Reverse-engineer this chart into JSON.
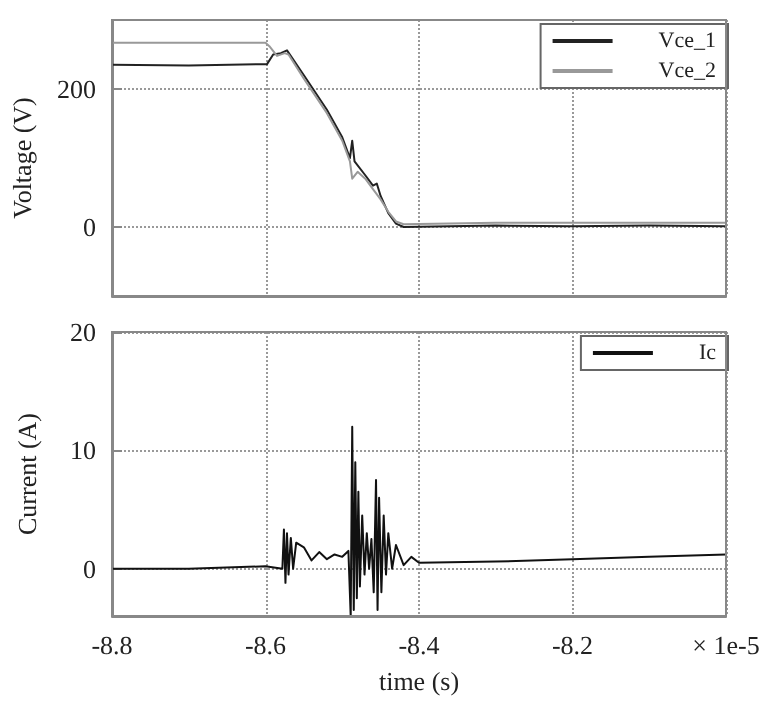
{
  "chart_data": [
    {
      "type": "line",
      "ylabel": "Voltage (V)",
      "xlim": [
        -8.8,
        -8.0
      ],
      "xticks": [
        -8.8,
        -8.6,
        -8.4,
        -8.2,
        -8.0
      ],
      "ylim": [
        -100,
        300
      ],
      "yticks": [
        0,
        200
      ],
      "grid": true,
      "legend": "top right",
      "tick_labels": "y",
      "marker": "none",
      "line_style": "solid",
      "series": [
        {
          "name": "Vce_1",
          "color": "#222222",
          "x": [
            -8.8,
            -8.7,
            -8.61,
            -8.598,
            -8.59,
            -8.58,
            -8.572,
            -8.55,
            -8.52,
            -8.5,
            -8.49,
            -8.487,
            -8.484,
            -8.47,
            -8.46,
            -8.455,
            -8.45,
            -8.44,
            -8.43,
            -8.42,
            -8.3,
            -8.2,
            -8.1,
            -8.0
          ],
          "values": [
            235,
            234,
            236,
            236,
            250,
            252,
            256,
            220,
            170,
            130,
            100,
            125,
            95,
            75,
            60,
            63,
            45,
            20,
            5,
            0,
            2,
            1,
            2,
            1
          ]
        },
        {
          "name": "Vce_2",
          "color": "#999999",
          "x": [
            -8.8,
            -8.7,
            -8.6,
            -8.595,
            -8.585,
            -8.575,
            -8.57,
            -8.55,
            -8.52,
            -8.5,
            -8.49,
            -8.487,
            -8.48,
            -8.47,
            -8.46,
            -8.45,
            -8.44,
            -8.43,
            -8.42,
            -8.3,
            -8.0
          ],
          "values": [
            267,
            267,
            267,
            262,
            248,
            252,
            250,
            215,
            165,
            125,
            95,
            70,
            80,
            70,
            55,
            40,
            22,
            8,
            4,
            6,
            6
          ]
        }
      ]
    },
    {
      "type": "line",
      "xlabel": "time (s)",
      "ylabel": "Current (A)",
      "xlim": [
        -8.8,
        -8.0
      ],
      "xticks": [
        -8.8,
        -8.6,
        -8.4,
        -8.2,
        {
          "value": -8.0,
          "label": "× 1e-5"
        }
      ],
      "ylim": [
        -4,
        20
      ],
      "yticks": [
        0,
        10,
        20
      ],
      "grid": true,
      "legend": "top right",
      "marker": "none",
      "line_style": "solid",
      "series": [
        {
          "name": "Ic",
          "color": "#111111",
          "x": [
            -8.8,
            -8.7,
            -8.6,
            -8.578,
            -8.576,
            -8.574,
            -8.572,
            -8.57,
            -8.567,
            -8.564,
            -8.56,
            -8.55,
            -8.54,
            -8.53,
            -8.52,
            -8.51,
            -8.5,
            -8.492,
            -8.489,
            -8.487,
            -8.485,
            -8.483,
            -8.481,
            -8.479,
            -8.477,
            -8.474,
            -8.471,
            -8.468,
            -8.465,
            -8.462,
            -8.459,
            -8.456,
            -8.454,
            -8.452,
            -8.449,
            -8.446,
            -8.443,
            -8.44,
            -8.435,
            -8.43,
            -8.42,
            -8.41,
            -8.4,
            -8.3,
            -8.2,
            -8.1,
            -8.0
          ],
          "values": [
            0,
            0,
            0.2,
            0,
            3.3,
            -1.2,
            3,
            -0.5,
            2.6,
            0,
            2.2,
            1.8,
            0.7,
            1.4,
            0.8,
            1.2,
            1,
            1.5,
            -4,
            12,
            -3.5,
            9,
            -2.5,
            6.5,
            -1.5,
            4.5,
            -0.5,
            3,
            0,
            2.5,
            -2,
            7.5,
            -3.5,
            6,
            -2,
            4.5,
            -0.5,
            3,
            0,
            2,
            0.3,
            1,
            0.5,
            0.6,
            0.8,
            1,
            1.2
          ]
        }
      ]
    }
  ]
}
